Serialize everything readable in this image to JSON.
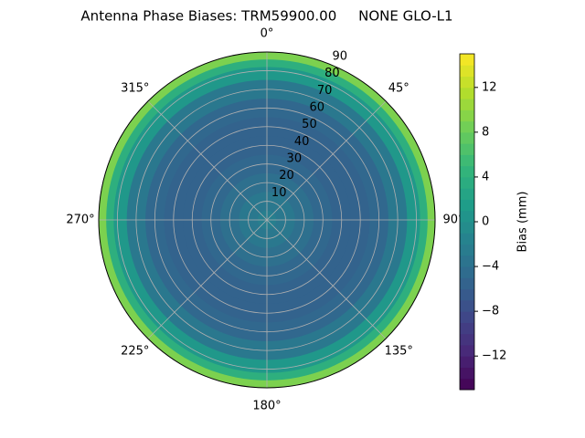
{
  "chart_data": {
    "type": "polar-contour",
    "title": "Antenna Phase Biases: TRM59900.00     NONE GLO-L1",
    "r": [
      5,
      15,
      25,
      35,
      45,
      55,
      65,
      75,
      82,
      86,
      90
    ],
    "values": [
      -2,
      -3,
      -4,
      -5,
      -5.5,
      -5.5,
      -5,
      -3,
      1,
      4,
      9
    ],
    "rlim": [
      0,
      90
    ],
    "rticks": [
      10,
      20,
      30,
      40,
      50,
      60,
      70,
      80,
      90
    ],
    "thetaticks": [
      {
        "value": 0,
        "label": "0°"
      },
      {
        "value": 45,
        "label": "45°"
      },
      {
        "value": 90,
        "label": "90°"
      },
      {
        "value": 135,
        "label": "135°"
      },
      {
        "value": 180,
        "label": "180°"
      },
      {
        "value": 225,
        "label": "225°"
      },
      {
        "value": 270,
        "label": "270°"
      },
      {
        "value": 315,
        "label": "315°"
      }
    ],
    "colorbar": {
      "label": "Bias (mm)",
      "lim": [
        -15,
        15
      ],
      "ticks": [
        {
          "value": -12,
          "label": "−12"
        },
        {
          "value": -8,
          "label": "−8"
        },
        {
          "value": -4,
          "label": "−4"
        },
        0,
        4,
        8,
        12
      ]
    },
    "colormap": "viridis",
    "grid": true
  }
}
